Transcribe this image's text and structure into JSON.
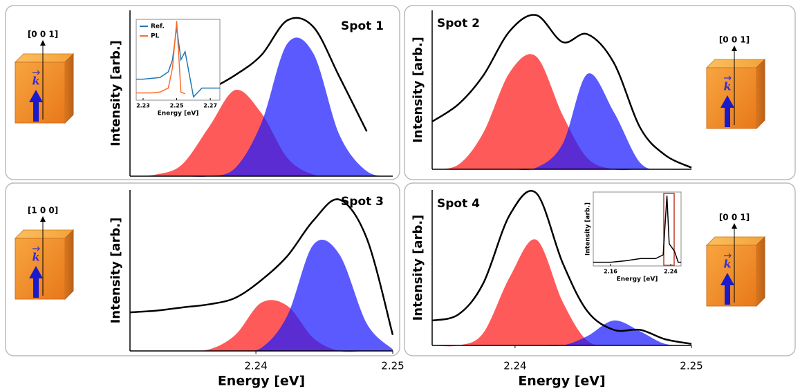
{
  "chart_data": [
    {
      "type": "area",
      "title": "Spot 1",
      "ylabel": "Intensity [arb.]",
      "xlim": [
        2.2308,
        2.25
      ],
      "ylim": [
        0,
        1
      ],
      "direction": "[0 0 1]",
      "vector": "k",
      "x": [
        2.2308,
        2.2327,
        2.2346,
        2.2366,
        2.2385,
        2.2404,
        2.2423,
        2.2442,
        2.2461,
        2.2481,
        2.25
      ],
      "series": [
        {
          "style": "fill",
          "color": "#ff1a1a",
          "values": [
            0,
            0.01,
            0.07,
            0.3,
            0.52,
            0.38,
            0.11,
            0.01,
            0,
            0,
            0
          ]
        },
        {
          "style": "fill",
          "color": "#1a1aff",
          "values": [
            0,
            0,
            0,
            0,
            0.05,
            0.32,
            0.8,
            0.74,
            0.25,
            0.03,
            0
          ]
        },
        {
          "style": "line",
          "color": "#000000",
          "values": [
            null,
            null,
            null,
            0.52,
            0.61,
            0.73,
            0.94,
            0.9,
            0.6,
            0.27,
            null
          ]
        }
      ],
      "inset": {
        "type": "line",
        "xlabel": "Energy [eV]",
        "xlim": [
          2.2259,
          2.2757
        ],
        "ylim": [
          0,
          1
        ],
        "xticks": [
          2.23,
          2.25,
          2.27
        ],
        "x": [
          2.2259,
          2.23,
          2.235,
          2.24,
          2.245,
          2.2475,
          2.25,
          2.2525,
          2.255,
          2.26,
          2.265,
          2.27,
          2.2757
        ],
        "series": [
          {
            "name": "Ref.",
            "color": "#1f77b4",
            "values": [
              0.26,
              0.26,
              0.27,
              0.28,
              0.35,
              0.5,
              0.9,
              0.5,
              0.6,
              0.04,
              0.15,
              0.15,
              0.15
            ]
          },
          {
            "name": "PL",
            "color": "#ff6a2a",
            "values": [
              0.09,
              0.09,
              0.09,
              0.1,
              0.15,
              0.4,
              0.98,
              0.1,
              0.08,
              null,
              null,
              null,
              null
            ]
          }
        ]
      }
    },
    {
      "type": "area",
      "title": "Spot 2",
      "ylabel": "Intensity [arb.]",
      "xlim": [
        2.2353,
        2.25
      ],
      "ylim": [
        0,
        1
      ],
      "direction": "[0 0 1]",
      "vector": "k",
      "x": [
        2.2353,
        2.2368,
        2.2382,
        2.2397,
        2.2412,
        2.2427,
        2.2441,
        2.2456,
        2.2471,
        2.2485,
        2.25
      ],
      "series": [
        {
          "style": "fill",
          "color": "#ff1a1a",
          "values": [
            0,
            0.03,
            0.23,
            0.61,
            0.71,
            0.34,
            0.07,
            0,
            0,
            0,
            0
          ]
        },
        {
          "style": "fill",
          "color": "#1a1aff",
          "values": [
            0,
            0,
            0,
            0,
            0.01,
            0.16,
            0.6,
            0.36,
            0.04,
            0,
            0
          ]
        },
        {
          "style": "line",
          "color": "#000000",
          "values": [
            0.3,
            0.41,
            0.59,
            0.87,
            0.97,
            0.8,
            0.85,
            0.67,
            0.26,
            0.09,
            0.01
          ]
        }
      ]
    },
    {
      "type": "area",
      "title": "Spot 3",
      "ylabel": "Intensity [arb.]",
      "xlabel": "Energy [eV]",
      "xlim": [
        2.2308,
        2.25
      ],
      "ylim": [
        0,
        1
      ],
      "xticks": [
        2.24,
        2.25
      ],
      "direction": "[1 0 0]",
      "vector": "k",
      "x": [
        2.2308,
        2.2327,
        2.2346,
        2.2366,
        2.2385,
        2.2404,
        2.2423,
        2.2442,
        2.2461,
        2.2481,
        2.25
      ],
      "series": [
        {
          "style": "fill",
          "color": "#ff1a1a",
          "values": [
            0,
            0,
            0,
            0.01,
            0.1,
            0.3,
            0.28,
            0.08,
            0,
            0,
            0
          ]
        },
        {
          "style": "fill",
          "color": "#1a1aff",
          "values": [
            0,
            0,
            0,
            0,
            0,
            0.02,
            0.22,
            0.66,
            0.6,
            0.17,
            0.01
          ]
        },
        {
          "style": "line",
          "color": "#000000",
          "values": [
            0.24,
            0.25,
            0.27,
            0.29,
            0.33,
            0.44,
            0.59,
            0.81,
            0.94,
            0.7,
            0.1
          ]
        }
      ]
    },
    {
      "type": "area",
      "title": "Spot 4",
      "ylabel": "Intensity [arb.]",
      "xlabel": "Energy [eV]",
      "xlim": [
        2.2353,
        2.25
      ],
      "ylim": [
        0,
        1
      ],
      "xticks": [
        2.24,
        2.25
      ],
      "direction": "[0 0 1]",
      "vector": "k",
      "x": [
        2.2353,
        2.2368,
        2.2382,
        2.2397,
        2.2412,
        2.2427,
        2.2441,
        2.2456,
        2.2471,
        2.2485,
        2.25
      ],
      "series": [
        {
          "style": "fill",
          "color": "#ff1a1a",
          "values": [
            0,
            0,
            0.08,
            0.44,
            0.68,
            0.28,
            0.03,
            0,
            0,
            0,
            0
          ]
        },
        {
          "style": "fill",
          "color": "#1a1aff",
          "values": [
            0,
            0,
            0,
            0,
            0,
            0,
            0.06,
            0.16,
            0.09,
            0.01,
            0
          ]
        },
        {
          "style": "line",
          "color": "#000000",
          "values": [
            0.16,
            0.2,
            0.4,
            0.84,
            0.98,
            0.53,
            0.22,
            0.1,
            0.1,
            0.04,
            0.01
          ]
        }
      ],
      "inset": {
        "type": "line",
        "ylabel": "Intensity [arb.]",
        "xlabel": "Energy [eV]",
        "xlim": [
          2.137,
          2.2538
        ],
        "ylim": [
          0,
          1
        ],
        "xticks": [
          2.16,
          2.24
        ],
        "highlight": [
          2.2308,
          2.2446
        ],
        "highlight_color": "#c0392b",
        "x": [
          2.137,
          2.16,
          2.18,
          2.2,
          2.22,
          2.23,
          2.235,
          2.238,
          2.245,
          2.25,
          2.2538
        ],
        "series": [
          {
            "color": "#000000",
            "values": [
              0.05,
              0.05,
              0.07,
              0.1,
              0.1,
              0.15,
              0.95,
              0.3,
              0.2,
              0.05,
              0.05
            ]
          }
        ]
      }
    }
  ]
}
